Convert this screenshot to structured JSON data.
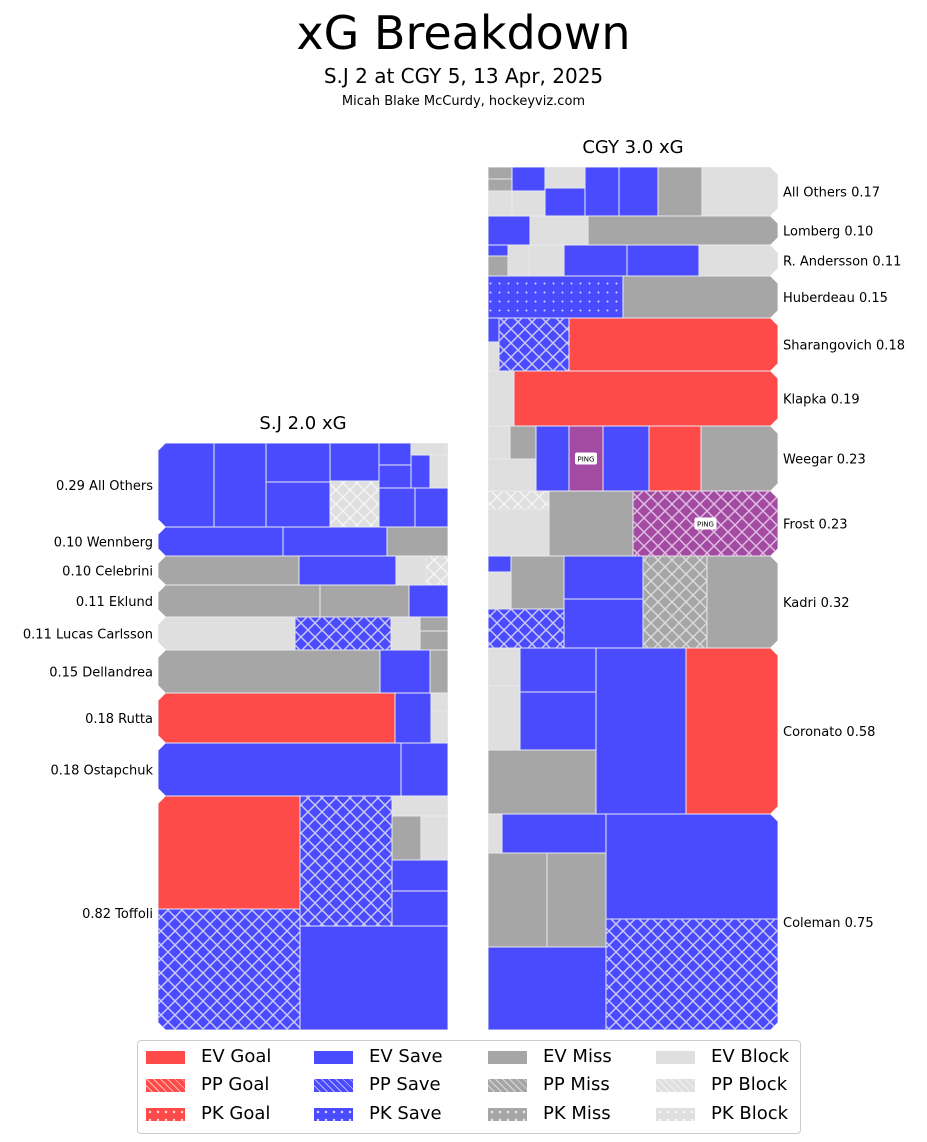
{
  "header": {
    "title": "xG Breakdown",
    "subtitle": "S.J 2 at CGY 5, 13 Apr, 2025",
    "credit": "Micah Blake McCurdy, hockeyviz.com"
  },
  "colors": {
    "goal": "#ff4a4a",
    "save": "#4a4aff",
    "miss": "#a6a6a6",
    "block": "#dfdfdf",
    "penalty": "#a34aa3",
    "hatch": "#c8c8f0"
  },
  "chart_data": {
    "type": "treemap",
    "title": "xG Breakdown",
    "teams": [
      {
        "name": "S.J",
        "title": "S.J 2.0 xG",
        "total_xg": 2.0,
        "label_side": "left",
        "players": [
          {
            "name": "All Others",
            "xg": 0.29,
            "label": "0.29 All Others"
          },
          {
            "name": "Wennberg",
            "xg": 0.1,
            "label": "0.10 Wennberg"
          },
          {
            "name": "Celebrini",
            "xg": 0.1,
            "label": "0.10 Celebrini"
          },
          {
            "name": "Eklund",
            "xg": 0.11,
            "label": "0.11 Eklund"
          },
          {
            "name": "Lucas Carlsson",
            "xg": 0.11,
            "label": "0.11 Lucas Carlsson"
          },
          {
            "name": "Dellandrea",
            "xg": 0.15,
            "label": "0.15 Dellandrea"
          },
          {
            "name": "Rutta",
            "xg": 0.18,
            "label": "0.18 Rutta"
          },
          {
            "name": "Ostapchuk",
            "xg": 0.18,
            "label": "0.18 Ostapchuk"
          },
          {
            "name": "Toffoli",
            "xg": 0.82,
            "label": "0.82 Toffoli"
          }
        ]
      },
      {
        "name": "CGY",
        "title": "CGY 3.0 xG",
        "total_xg": 3.0,
        "label_side": "right",
        "players": [
          {
            "name": "All Others",
            "xg": 0.17,
            "label": "All Others 0.17"
          },
          {
            "name": "Lomberg",
            "xg": 0.1,
            "label": "Lomberg 0.10"
          },
          {
            "name": "R. Andersson",
            "xg": 0.11,
            "label": "R. Andersson 0.11"
          },
          {
            "name": "Huberdeau",
            "xg": 0.15,
            "label": "Huberdeau 0.15"
          },
          {
            "name": "Sharangovich",
            "xg": 0.18,
            "label": "Sharangovich 0.18"
          },
          {
            "name": "Klapka",
            "xg": 0.19,
            "label": "Klapka 0.19"
          },
          {
            "name": "Weegar",
            "xg": 0.23,
            "label": "Weegar 0.23"
          },
          {
            "name": "Frost",
            "xg": 0.23,
            "label": "Frost 0.23"
          },
          {
            "name": "Kadri",
            "xg": 0.32,
            "label": "Kadri 0.32"
          },
          {
            "name": "Coronato",
            "xg": 0.58,
            "label": "Coronato 0.58"
          },
          {
            "name": "Coleman",
            "xg": 0.75,
            "label": "Coleman 0.75"
          }
        ]
      }
    ],
    "penalty_label": "PING",
    "legend": {
      "placement": "bottom",
      "items": [
        {
          "label": "EV Goal",
          "result": "goal",
          "strength": "EV"
        },
        {
          "label": "PP Goal",
          "result": "goal",
          "strength": "PP"
        },
        {
          "label": "PK Goal",
          "result": "goal",
          "strength": "PK"
        },
        {
          "label": "EV Save",
          "result": "save",
          "strength": "EV"
        },
        {
          "label": "PP Save",
          "result": "save",
          "strength": "PP"
        },
        {
          "label": "PK Save",
          "result": "save",
          "strength": "PK"
        },
        {
          "label": "EV Miss",
          "result": "miss",
          "strength": "EV"
        },
        {
          "label": "PP Miss",
          "result": "miss",
          "strength": "PP"
        },
        {
          "label": "PK Miss",
          "result": "miss",
          "strength": "PK"
        },
        {
          "label": "EV Block",
          "result": "block",
          "strength": "EV"
        },
        {
          "label": "PP Block",
          "result": "block",
          "strength": "PP"
        },
        {
          "label": "PK Block",
          "result": "block",
          "strength": "PK"
        }
      ]
    }
  }
}
